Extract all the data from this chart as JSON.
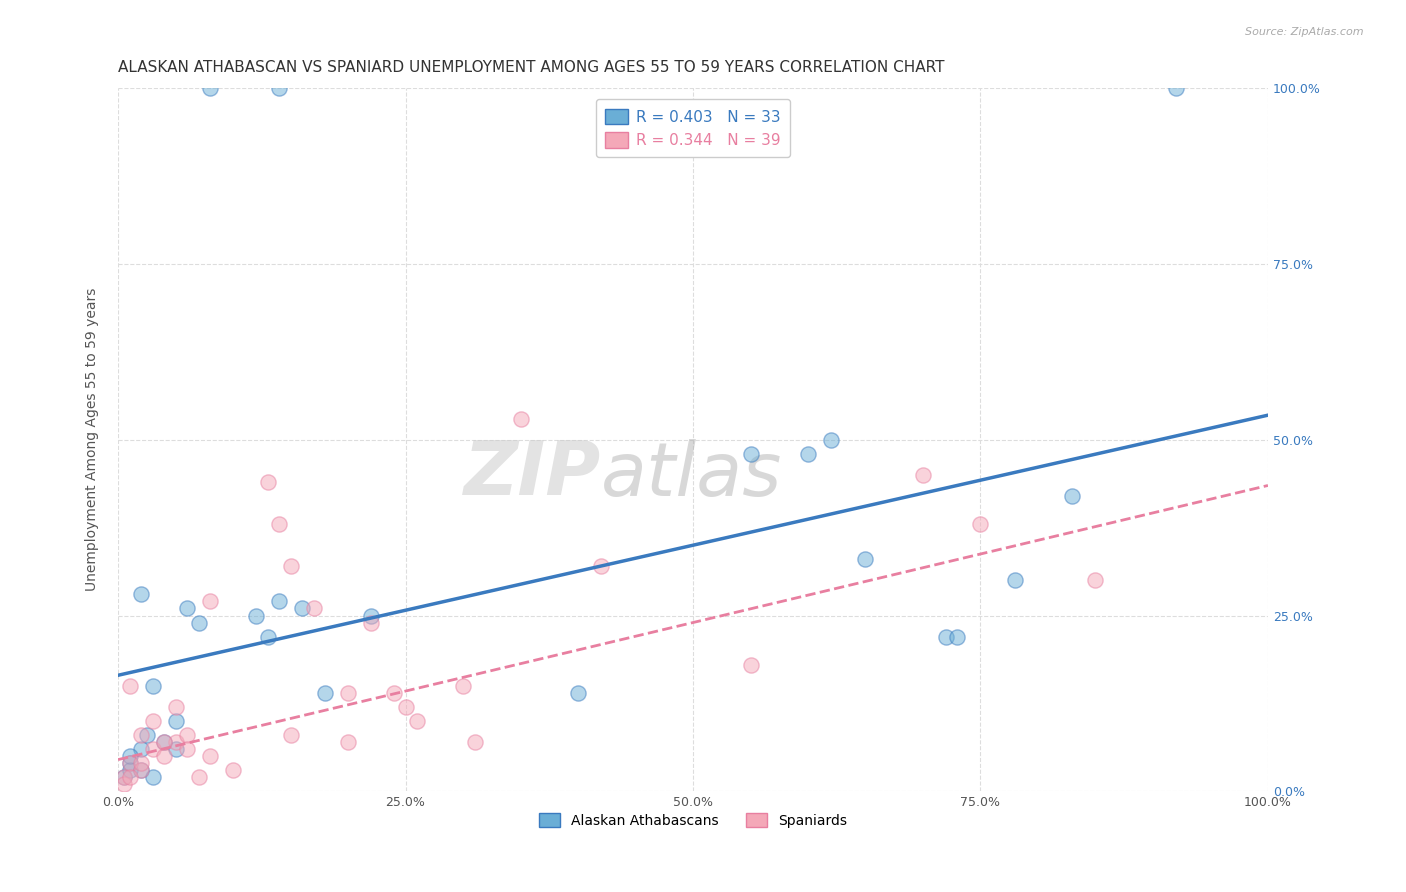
{
  "title": "ALASKAN ATHABASCAN VS SPANIARD UNEMPLOYMENT AMONG AGES 55 TO 59 YEARS CORRELATION CHART",
  "source": "Source: ZipAtlas.com",
  "ylabel": "Unemployment Among Ages 55 to 59 years",
  "xlim": [
    0.0,
    1.0
  ],
  "ylim": [
    0.0,
    1.0
  ],
  "xtick_labels": [
    "0.0%",
    "25.0%",
    "50.0%",
    "75.0%",
    "100.0%"
  ],
  "xtick_positions": [
    0.0,
    0.25,
    0.5,
    0.75,
    1.0
  ],
  "ytick_labels": [
    "0.0%",
    "25.0%",
    "50.0%",
    "75.0%",
    "100.0%"
  ],
  "ytick_positions": [
    0.0,
    0.25,
    0.5,
    0.75,
    1.0
  ],
  "blue_color": "#6aaed6",
  "pink_color": "#f4a8b8",
  "blue_line_color": "#3a7abf",
  "pink_line_color": "#e87fa0",
  "legend_blue_label": "Alaskan Athabascans",
  "legend_pink_label": "Spaniards",
  "legend_blue_r": "R = 0.403",
  "legend_blue_n": "N = 33",
  "legend_pink_r": "R = 0.344",
  "legend_pink_n": "N = 39",
  "watermark_zip": "ZIP",
  "watermark_atlas": "atlas",
  "blue_scatter_x": [
    0.02,
    0.08,
    0.14,
    0.005,
    0.01,
    0.02,
    0.025,
    0.04,
    0.05,
    0.01,
    0.03,
    0.06,
    0.07,
    0.12,
    0.13,
    0.14,
    0.16,
    0.18,
    0.22,
    0.4,
    0.55,
    0.6,
    0.62,
    0.65,
    0.72,
    0.73,
    0.78,
    0.83,
    0.92,
    0.01,
    0.02,
    0.03,
    0.05
  ],
  "blue_scatter_y": [
    0.28,
    1.0,
    1.0,
    0.02,
    0.04,
    0.06,
    0.08,
    0.07,
    0.1,
    0.03,
    0.15,
    0.26,
    0.24,
    0.25,
    0.22,
    0.27,
    0.26,
    0.14,
    0.25,
    0.14,
    0.48,
    0.48,
    0.5,
    0.33,
    0.22,
    0.22,
    0.3,
    0.42,
    1.0,
    0.05,
    0.03,
    0.02,
    0.06
  ],
  "pink_scatter_x": [
    0.005,
    0.01,
    0.02,
    0.03,
    0.04,
    0.05,
    0.06,
    0.07,
    0.08,
    0.01,
    0.02,
    0.03,
    0.05,
    0.13,
    0.14,
    0.15,
    0.17,
    0.2,
    0.22,
    0.24,
    0.25,
    0.26,
    0.3,
    0.31,
    0.35,
    0.42,
    0.55,
    0.7,
    0.75,
    0.85,
    0.005,
    0.01,
    0.02,
    0.04,
    0.06,
    0.08,
    0.1,
    0.15,
    0.2
  ],
  "pink_scatter_y": [
    0.02,
    0.04,
    0.03,
    0.06,
    0.05,
    0.07,
    0.08,
    0.02,
    0.27,
    0.15,
    0.08,
    0.1,
    0.12,
    0.44,
    0.38,
    0.32,
    0.26,
    0.14,
    0.24,
    0.14,
    0.12,
    0.1,
    0.15,
    0.07,
    0.53,
    0.32,
    0.18,
    0.45,
    0.38,
    0.3,
    0.01,
    0.02,
    0.04,
    0.07,
    0.06,
    0.05,
    0.03,
    0.08,
    0.07
  ],
  "blue_line_x": [
    0.0,
    1.0
  ],
  "blue_line_y": [
    0.165,
    0.535
  ],
  "pink_line_x": [
    0.0,
    1.0
  ],
  "pink_line_y": [
    0.045,
    0.435
  ],
  "marker_size": 120,
  "marker_alpha": 0.5,
  "title_fontsize": 11,
  "label_fontsize": 10,
  "tick_fontsize": 9,
  "background_color": "#ffffff",
  "grid_color": "#dddddd",
  "tick_color": "#555555",
  "right_tick_color": "#3a7abf"
}
